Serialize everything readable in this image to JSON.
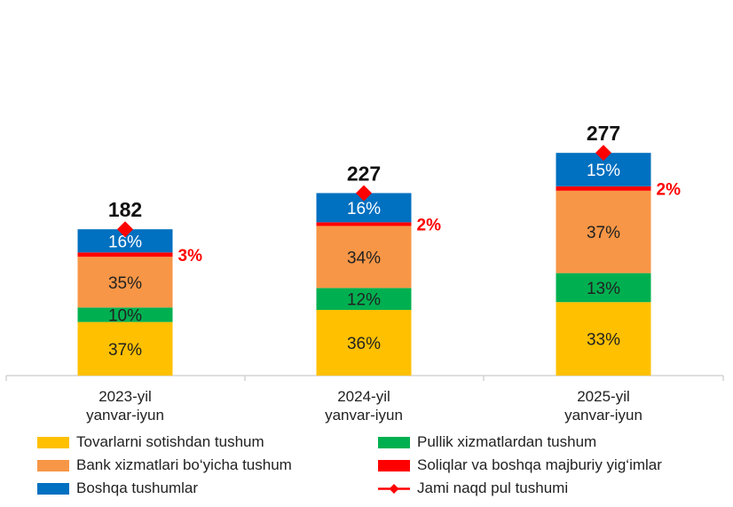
{
  "chart_data": {
    "type": "bar",
    "stacked": true,
    "categories": [
      "2023-yil yanvar-iyun",
      "2024-yil yanvar-iyun",
      "2025-yil yanvar-iyun"
    ],
    "category_lines": [
      [
        "2023-yil",
        "yanvar-iyun"
      ],
      [
        "2024-yil",
        "yanvar-iyun"
      ],
      [
        "2025-yil",
        "yanvar-iyun"
      ]
    ],
    "series": [
      {
        "name": "Tovarlarni sotishdan tushum",
        "color": "#FFC000",
        "values": [
          37,
          36,
          33
        ],
        "labels": [
          "37%",
          "36%",
          "33%"
        ]
      },
      {
        "name": "Pullik xizmatlardan tushum",
        "color": "#00B050",
        "values": [
          10,
          12,
          13
        ],
        "labels": [
          "10%",
          "12%",
          "13%"
        ]
      },
      {
        "name": "Bank xizmatlari bo‘yicha tushum",
        "color": "#F79646",
        "values": [
          35,
          34,
          37
        ],
        "labels": [
          "35%",
          "34%",
          "37%"
        ]
      },
      {
        "name": "Soliqlar va boshqa majburiy yig‘imlar",
        "color": "#FF0000",
        "values": [
          3,
          2,
          2
        ],
        "labels": [
          "3%",
          "2%",
          "2%"
        ]
      },
      {
        "name": "Boshqa tushumlar",
        "color": "#0070C0",
        "values": [
          16,
          16,
          15
        ],
        "labels": [
          "16%",
          "16%",
          "15%"
        ]
      }
    ],
    "total_series": {
      "name": "Jami naqd pul tushumi",
      "color": "#FF0000",
      "values": [
        182,
        227,
        277
      ],
      "labels": [
        "182",
        "227",
        "277"
      ]
    },
    "ylim": [
      0,
      300
    ],
    "title": "",
    "xlabel": "",
    "ylabel": "",
    "grid": false,
    "legend_position": "bottom"
  },
  "legend": [
    {
      "label": "Tovarlarni sotishdan tushum",
      "color": "#FFC000",
      "kind": "box"
    },
    {
      "label": "Pullik xizmatlardan tushum",
      "color": "#00B050",
      "kind": "box"
    },
    {
      "label": "Bank xizmatlari bo‘yicha tushum",
      "color": "#F79646",
      "kind": "box"
    },
    {
      "label": "Soliqlar va boshqa majburiy yig‘imlar",
      "color": "#FF0000",
      "kind": "box"
    },
    {
      "label": "Boshqa tushumlar",
      "color": "#0070C0",
      "kind": "box"
    },
    {
      "label": "Jami naqd pul tushumi",
      "color": "#FF0000",
      "kind": "line-marker"
    }
  ]
}
